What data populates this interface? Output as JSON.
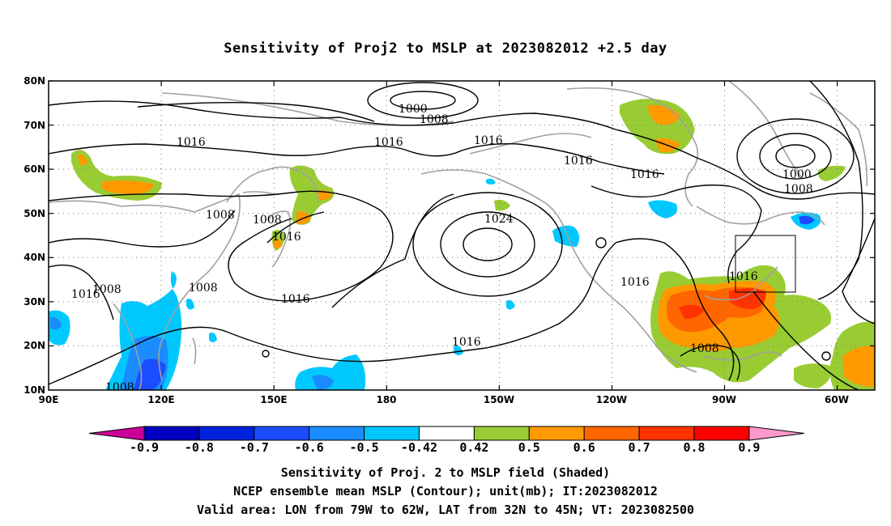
{
  "title": "Sensitivity of Proj2 to MSLP at 2023082012 +2.5 day",
  "captions": [
    "Sensitivity of Proj. 2 to MSLP field (Shaded)",
    "NCEP ensemble mean MSLP (Contour); unit(mb); IT:2023082012",
    "Valid area: LON from 79W to 62W, LAT from 32N to 45N; VT: 2023082500"
  ],
  "axes": {
    "lat_labels": [
      "80N",
      "70N",
      "60N",
      "50N",
      "40N",
      "30N",
      "20N",
      "10N"
    ],
    "lon_labels": [
      "90E",
      "120E",
      "150E",
      "180",
      "150W",
      "120W",
      "90W",
      "60W"
    ],
    "lat_range": [
      10,
      80
    ],
    "lon_range_east_deg": [
      90,
      310
    ],
    "grid": "dotted"
  },
  "contour_labels": [
    "1000",
    "1008",
    "1016",
    "1016",
    "1016",
    "1016",
    "1016",
    "1000",
    "1008",
    "1008",
    "1008",
    "1016",
    "1024",
    "1016",
    "1016",
    "1016",
    "1016",
    "1008",
    "1008",
    "1016"
  ],
  "colorbar": {
    "labels": [
      "-0.9",
      "-0.8",
      "-0.7",
      "-0.6",
      "-0.5",
      "-0.42",
      "0.42",
      "0.5",
      "0.6",
      "0.7",
      "0.8",
      "0.9"
    ],
    "colors": [
      "#cc0099",
      "#0000c0",
      "#0022dd",
      "#1a4dff",
      "#1a8cff",
      "#00c8ff",
      "#ffffff",
      "#99cc33",
      "#ff9900",
      "#ff6600",
      "#ff3300",
      "#ff0000",
      "#ff99cc"
    ]
  },
  "valid_area": {
    "lon": [
      "79W",
      "62W"
    ],
    "lat": [
      "32N",
      "45N"
    ]
  }
}
